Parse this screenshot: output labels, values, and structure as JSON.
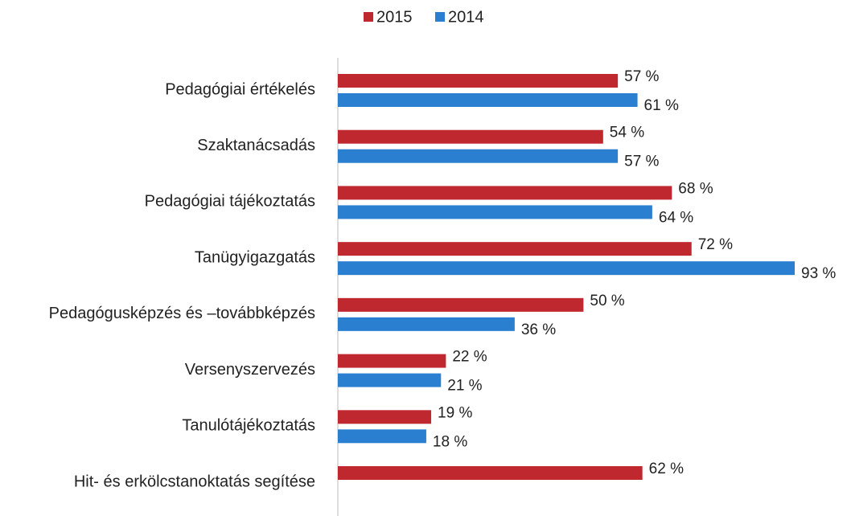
{
  "chart_data": {
    "type": "bar",
    "orientation": "horizontal",
    "categories": [
      "Pedagógiai értékelés",
      "Szaktanácsadás",
      "Pedagógiai tájékoztatás",
      "Tanügyigazgatás",
      "Pedagógusképzés és –továbbképzés",
      "Versenyszervezés",
      "Tanulótájékoztatás",
      "Hit- és erkölcstanoktatás segítése"
    ],
    "series": [
      {
        "name": "2015",
        "color": "#c0282f",
        "values": [
          57,
          54,
          68,
          72,
          50,
          22,
          19,
          62
        ],
        "value_labels": [
          "57 %",
          "54 %",
          "68 %",
          "72 %",
          "50 %",
          "22 %",
          "19 %",
          "62 %"
        ]
      },
      {
        "name": "2014",
        "color": "#2b7fd0",
        "values": [
          61,
          57,
          64,
          93,
          36,
          21,
          18,
          null
        ],
        "value_labels": [
          "61 %",
          "57 %",
          "64 %",
          "93 %",
          "36 %",
          "21 %",
          "18 %",
          null
        ]
      }
    ],
    "legend": "top"
  }
}
